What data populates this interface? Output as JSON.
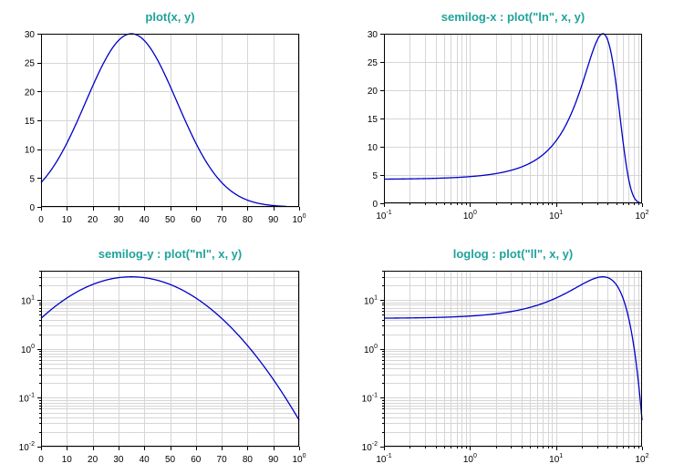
{
  "colors": {
    "title": "#1fa39b",
    "curve": "#0000c8",
    "grid": "#d6d6d6"
  },
  "chart_data": [
    {
      "type": "line",
      "title": "plot(x, y)",
      "xscale": "linear",
      "yscale": "linear",
      "xlim": [
        0,
        100
      ],
      "ylim": [
        0,
        30
      ],
      "grid": true,
      "xticks": [
        "0",
        "10",
        "20",
        "30",
        "40",
        "50",
        "60",
        "70",
        "80",
        "90",
        "100"
      ],
      "yticks": [
        "0",
        "5",
        "10",
        "15",
        "20",
        "25",
        "30"
      ],
      "series": [
        {
          "curve": "y = 30*exp(-((x-35)/25)^2)",
          "x": [
            0,
            10,
            20,
            30,
            35,
            40,
            50,
            60,
            70,
            80,
            90,
            95
          ],
          "y": [
            3.5,
            11.6,
            21.0,
            28.8,
            30.0,
            28.8,
            21.0,
            11.6,
            4.0,
            1.1,
            0.2,
            0.1
          ]
        }
      ]
    },
    {
      "type": "line",
      "title": "semilog-x : plot(\"ln\", x, y)",
      "xscale": "log",
      "yscale": "linear",
      "xlim": [
        0.1,
        100
      ],
      "ylim": [
        0,
        30
      ],
      "grid": true,
      "xticks": [
        "10-1",
        "100",
        "101",
        "102"
      ],
      "yticks": [
        "0",
        "5",
        "10",
        "15",
        "20",
        "25",
        "30"
      ],
      "series": [
        {
          "x": [
            0.1,
            1,
            10,
            35,
            50,
            70,
            100
          ],
          "y": [
            3.5,
            3.9,
            10.3,
            30.0,
            21.0,
            4.0,
            0.0
          ]
        }
      ]
    },
    {
      "type": "line",
      "title": "semilog-y : plot(\"nl\", x, y)",
      "xscale": "linear",
      "yscale": "log",
      "xlim": [
        0,
        100
      ],
      "ylim": [
        0.01,
        40
      ],
      "grid": true,
      "xticks": [
        "0",
        "10",
        "20",
        "30",
        "40",
        "50",
        "60",
        "70",
        "80",
        "90",
        "100"
      ],
      "yticks": [
        "10-2",
        "10-1",
        "100",
        "101"
      ],
      "series": [
        {
          "x": [
            0,
            10,
            20,
            35,
            50,
            70,
            90,
            100
          ],
          "y": [
            3.5,
            11.6,
            21.0,
            30.0,
            21.0,
            4.0,
            0.2,
            0.02
          ]
        }
      ]
    },
    {
      "type": "line",
      "title": "loglog : plot(\"ll\", x, y)",
      "xscale": "log",
      "yscale": "log",
      "xlim": [
        0.1,
        100
      ],
      "ylim": [
        0.01,
        40
      ],
      "grid": true,
      "xticks": [
        "10-1",
        "100",
        "101",
        "102"
      ],
      "yticks": [
        "10-2",
        "10-1",
        "100",
        "101"
      ],
      "series": [
        {
          "x": [
            0.1,
            1,
            10,
            35,
            60,
            80,
            100
          ],
          "y": [
            3.5,
            3.9,
            10.3,
            30.0,
            11.6,
            1.1,
            0.02
          ]
        }
      ]
    }
  ]
}
